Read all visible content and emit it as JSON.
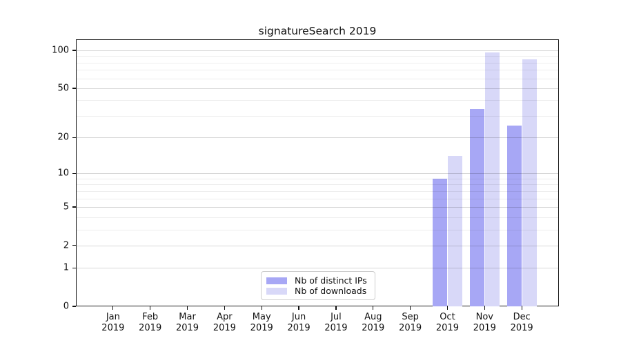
{
  "title": "signatureSearch 2019",
  "colors": {
    "ips_bar": "#a7a7f5",
    "downloads_bar": "#d8d8f8",
    "axis": "#1a1a1a"
  },
  "legend": {
    "items": [
      {
        "label": "Nb of distinct IPs",
        "color_key": "ips_bar"
      },
      {
        "label": "Nb of downloads",
        "color_key": "downloads_bar"
      }
    ]
  },
  "chart_data": {
    "type": "bar",
    "title": "signatureSearch 2019",
    "scale": "log1p",
    "categories": [
      "Jan",
      "Feb",
      "Mar",
      "Apr",
      "May",
      "Jun",
      "Jul",
      "Aug",
      "Sep",
      "Oct",
      "Nov",
      "Dec"
    ],
    "category_year": "2019",
    "series": [
      {
        "name": "Nb of distinct IPs",
        "color_key": "ips_bar",
        "values": [
          0,
          0,
          0,
          0,
          0,
          0,
          0,
          0,
          0,
          9,
          34,
          25
        ]
      },
      {
        "name": "Nb of downloads",
        "color_key": "downloads_bar",
        "values": [
          0,
          0,
          0,
          0,
          0,
          0,
          0,
          0,
          0,
          14,
          96,
          85
        ]
      }
    ],
    "y_ticks": [
      0,
      1,
      2,
      5,
      10,
      20,
      50,
      100
    ],
    "y_minor_ticks": [
      3,
      4,
      6,
      7,
      8,
      9,
      30,
      40,
      60,
      70,
      80,
      90
    ],
    "ylim": [
      0,
      121
    ],
    "grid": "on",
    "legend_position": "lower center"
  }
}
